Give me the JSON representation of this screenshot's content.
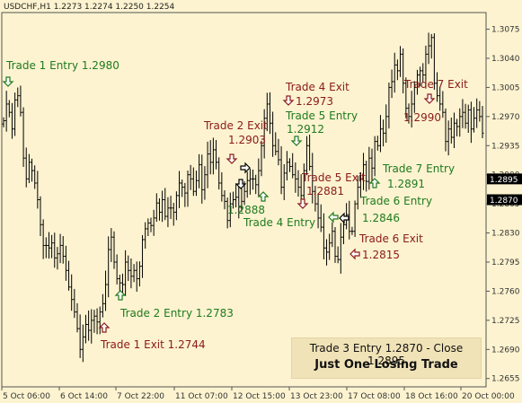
{
  "header": {
    "symbol_label": "USDCHF,H1",
    "ohlc_label": "1.2273 1.2274 1.2250 1.2254"
  },
  "colors": {
    "background": "#fdf3d0",
    "bars": "#000000",
    "entry": "#1f7a1f",
    "exit": "#8a1a1a",
    "grid": "#cfc39b"
  },
  "chart_data": {
    "type": "bar",
    "title": "",
    "xlabel": "",
    "ylabel": "",
    "ylim": [
      1.2645,
      1.3095
    ],
    "y_ticks": [
      "1.3075",
      "1.3040",
      "1.3005",
      "1.2970",
      "1.2935",
      "1.2900",
      "1.2865",
      "1.2830",
      "1.2795",
      "1.2760",
      "1.2725",
      "1.2690",
      "1.2655"
    ],
    "x_ticks": [
      "5 Oct 06:00",
      "6 Oct 14:00",
      "7 Oct 22:00",
      "11 Oct 07:00",
      "12 Oct 15:00",
      "13 Oct 23:00",
      "17 Oct 08:00",
      "18 Oct 16:00",
      "20 Oct 00:00"
    ],
    "price_labels": [
      {
        "value": 1.2895,
        "label": "1.2895"
      },
      {
        "value": 1.287,
        "label": "1.2870"
      }
    ],
    "series": [
      {
        "closes": [
          1.2965,
          1.2985,
          1.2975,
          1.2955,
          1.299,
          1.2995,
          1.2975,
          1.292,
          1.2895,
          1.2915,
          1.2905,
          1.289,
          1.287,
          1.284,
          1.2815,
          1.2815,
          1.2812,
          1.2818,
          1.28,
          1.2805,
          1.2815,
          1.2802,
          1.2785,
          1.2765,
          1.275,
          1.2735,
          1.2715,
          1.269,
          1.2705,
          1.272,
          1.2713,
          1.2725,
          1.273,
          1.2723,
          1.2735,
          1.2745,
          1.2768,
          1.281,
          1.2825,
          1.2795,
          1.2775,
          1.277,
          1.2768,
          1.2795,
          1.2785,
          1.2778,
          1.2785,
          1.2775,
          1.279,
          1.2822,
          1.2835,
          1.2842,
          1.2839,
          1.2848,
          1.2866,
          1.2855,
          1.287,
          1.285,
          1.286,
          1.286,
          1.2855,
          1.2875,
          1.289,
          1.2885,
          1.2878,
          1.29,
          1.2895,
          1.288,
          1.2893,
          1.2912,
          1.2882,
          1.29,
          1.2925,
          1.2915,
          1.293,
          1.2915,
          1.289,
          1.2875,
          1.2868,
          1.2845,
          1.2865,
          1.287,
          1.2873,
          1.2861,
          1.2868,
          1.288,
          1.2893,
          1.2895,
          1.2895,
          1.2888,
          1.2905,
          1.2935,
          1.2968,
          1.2985,
          1.2962,
          1.2935,
          1.2928,
          1.2918,
          1.2885,
          1.2902,
          1.2915,
          1.291,
          1.29,
          1.2895,
          1.2885,
          1.2875,
          1.2905,
          1.2935,
          1.291,
          1.288,
          1.2865,
          1.2848,
          1.2837,
          1.2812,
          1.2807,
          1.2818,
          1.2832,
          1.2802,
          1.2798,
          1.2825,
          1.284,
          1.2852,
          1.2832,
          1.2832,
          1.2865,
          1.2885,
          1.2895,
          1.2912,
          1.2892,
          1.292,
          1.2908,
          1.294,
          1.2935,
          1.2955,
          1.295,
          1.297,
          1.3005,
          1.3012,
          1.3032,
          1.3025,
          1.3045,
          1.301,
          1.298,
          1.297,
          1.2985,
          1.3005,
          1.302,
          1.3025,
          1.302,
          1.3045,
          1.3055,
          1.3065,
          1.301,
          1.2995,
          1.2985,
          1.2975,
          1.294,
          1.2955,
          1.2945,
          1.2962,
          1.2958,
          1.297,
          1.2975,
          1.2962,
          1.2978,
          1.2955,
          1.2968,
          1.2978,
          1.297,
          1.295
        ]
      }
    ]
  },
  "annotations": [
    {
      "key": "t1_entry",
      "text": "Trade 1 Entry  1.2980",
      "kind": "entry"
    },
    {
      "key": "t1_exit",
      "text": "Trade 1 Exit  1.2744",
      "kind": "exit"
    },
    {
      "key": "t2_entry",
      "text": "Trade 2 Entry 1.2783",
      "kind": "entry"
    },
    {
      "key": "t2_exit_a",
      "text": "Trade 2 Exit",
      "kind": "exit"
    },
    {
      "key": "t2_exit_b",
      "text": "1.2903",
      "kind": "exit"
    },
    {
      "key": "t3_price",
      "text": "1.2888",
      "kind": "entry"
    },
    {
      "key": "t4_entry",
      "text": "Trade 4 Entry",
      "kind": "entry"
    },
    {
      "key": "t4_exit_a",
      "text": "Trade 4 Exit",
      "kind": "exit"
    },
    {
      "key": "t4_exit_b",
      "text": "1.2973",
      "kind": "exit"
    },
    {
      "key": "t5_entry_a",
      "text": "Trade 5 Entry",
      "kind": "entry"
    },
    {
      "key": "t5_entry_b",
      "text": "1.2912",
      "kind": "entry"
    },
    {
      "key": "t5_exit_a",
      "text": "Trade 5 Exit",
      "kind": "exit"
    },
    {
      "key": "t5_exit_b",
      "text": "1.2881",
      "kind": "exit"
    },
    {
      "key": "t6_entry_a",
      "text": "Trade 6 Entry",
      "kind": "entry"
    },
    {
      "key": "t6_entry_b",
      "text": "1.2846",
      "kind": "entry"
    },
    {
      "key": "t6_exit_a",
      "text": "Trade 6 Exit",
      "kind": "exit"
    },
    {
      "key": "t6_exit_b",
      "text": "1.2815",
      "kind": "exit"
    },
    {
      "key": "t7_entry_a",
      "text": "Trade 7 Entry",
      "kind": "entry"
    },
    {
      "key": "t7_entry_b",
      "text": "1.2891",
      "kind": "entry"
    },
    {
      "key": "t7_exit_a",
      "text": "Trade 7 Exit",
      "kind": "exit"
    },
    {
      "key": "t7_exit_b",
      "text": "1.2990",
      "kind": "exit"
    }
  ],
  "info": {
    "line1": "Trade 3 Entry 1.2870 - Close 1.2895",
    "line2": "Just One Losing Trade"
  }
}
